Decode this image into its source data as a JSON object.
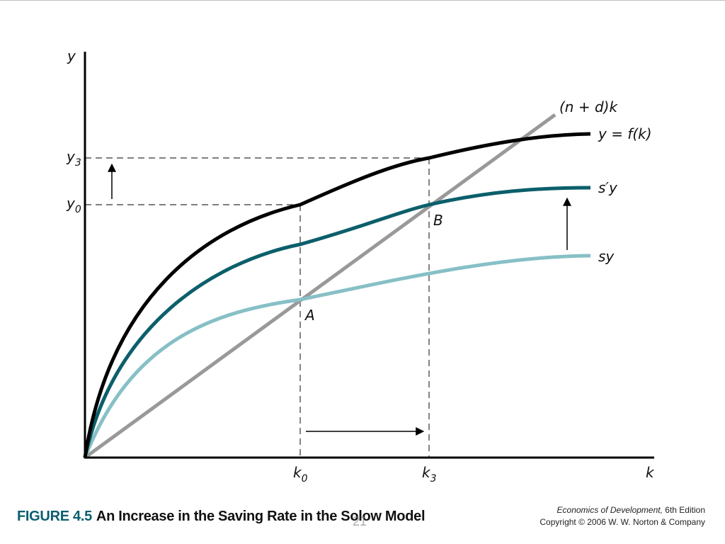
{
  "diagram": {
    "axes": {
      "y_label": "y",
      "x_label": "k"
    },
    "curves": {
      "production": {
        "label": "y = f(k)",
        "color": "#000000"
      },
      "new_saving": {
        "label": "s′y",
        "color": "#0b5f6b"
      },
      "old_saving": {
        "label": "sy",
        "color": "#86c0c6"
      },
      "break_even": {
        "label": "(n + d)k",
        "color": "#999999"
      }
    },
    "points": {
      "a": "A",
      "b": "B"
    },
    "ticks": {
      "y3": {
        "main": "y",
        "sub": "3"
      },
      "y0": {
        "main": "y",
        "sub": "0"
      },
      "k0": {
        "main": "k",
        "sub": "0"
      },
      "k3": {
        "main": "k",
        "sub": "3"
      }
    }
  },
  "caption": {
    "figure_number": "FIGURE 4.5",
    "title": "An Increase in the Saving Rate in the Solow Model"
  },
  "credits": {
    "book": "Economics of Development,",
    "edition": "6th Edition",
    "copyright": "Copyright © 2006 W. W. Norton & Company"
  },
  "page_number": "21"
}
